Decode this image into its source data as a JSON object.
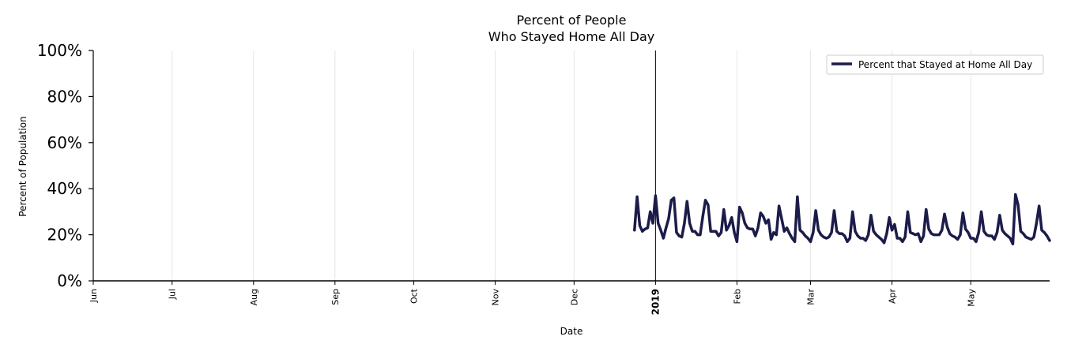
{
  "chart_data": {
    "type": "line",
    "title_line1": "Percent of People",
    "title_line2": "Who Stayed Home All Day",
    "xlabel": "Date",
    "ylabel": "Percent of Population",
    "ylim": [
      0,
      100
    ],
    "y_ticks": [
      "0%",
      "20%",
      "40%",
      "60%",
      "80%",
      "100%"
    ],
    "y_tick_values": [
      0,
      20,
      40,
      60,
      80,
      100
    ],
    "x_range_days": [
      0,
      364
    ],
    "x_ticks": [
      {
        "label": "Jun",
        "day": 0
      },
      {
        "label": "Jul",
        "day": 30
      },
      {
        "label": "Aug",
        "day": 61
      },
      {
        "label": "Sep",
        "day": 92
      },
      {
        "label": "Oct",
        "day": 122
      },
      {
        "label": "Nov",
        "day": 153
      },
      {
        "label": "Dec",
        "day": 183
      },
      {
        "label": "2019",
        "day": 214,
        "bold": true
      },
      {
        "label": "Feb",
        "day": 245
      },
      {
        "label": "Mar",
        "day": 273
      },
      {
        "label": "Apr",
        "day": 304
      },
      {
        "label": "May",
        "day": 334
      }
    ],
    "year_marker_day": 214,
    "grid": true,
    "legend_position": "top-right",
    "series": [
      {
        "name": "Percent that Stayed at Home All Day",
        "color": "#1c1c4a",
        "start_day": 206,
        "values": [
          22,
          36.5,
          24,
          21.5,
          22.5,
          23,
          30,
          25,
          37,
          25,
          22,
          18.5,
          23,
          27,
          35,
          36,
          21,
          19.5,
          19,
          25,
          34.5,
          25,
          21.5,
          21.5,
          20,
          20,
          28,
          35,
          33,
          21.5,
          21.5,
          21.5,
          19.5,
          21,
          31,
          22,
          24,
          27.5,
          21,
          17,
          32,
          29.5,
          25,
          23,
          22.5,
          22.5,
          19.5,
          23,
          29.5,
          28,
          25,
          26.5,
          18,
          21,
          20,
          32.5,
          27,
          21.5,
          23,
          20.5,
          18.5,
          17,
          36.5,
          22,
          21,
          19.5,
          18.5,
          17,
          21,
          30.5,
          22,
          20,
          19,
          18.5,
          19,
          21,
          30.5,
          21.5,
          20.5,
          20.5,
          19.5,
          17,
          18.5,
          30,
          21.5,
          19.5,
          18.5,
          18.5,
          17.5,
          20,
          28.5,
          21.5,
          20,
          19,
          18,
          16.5,
          20.5,
          27.5,
          22,
          24.5,
          18.5,
          18.5,
          17,
          19,
          30,
          21,
          20.5,
          20,
          20.5,
          17,
          19.5,
          31,
          22.5,
          20.5,
          20,
          20,
          20,
          22,
          29,
          23.5,
          20.5,
          19.5,
          19,
          18,
          20,
          29.5,
          22.5,
          21,
          18.5,
          18.5,
          17,
          21,
          30,
          21.5,
          20,
          19.5,
          19.5,
          18,
          21,
          28.5,
          22,
          20.5,
          19.5,
          18.5,
          16,
          37.5,
          33,
          21.5,
          20.5,
          19,
          18.5,
          18,
          19,
          25,
          32.5,
          22,
          21,
          19.5,
          17.5
        ]
      }
    ]
  }
}
